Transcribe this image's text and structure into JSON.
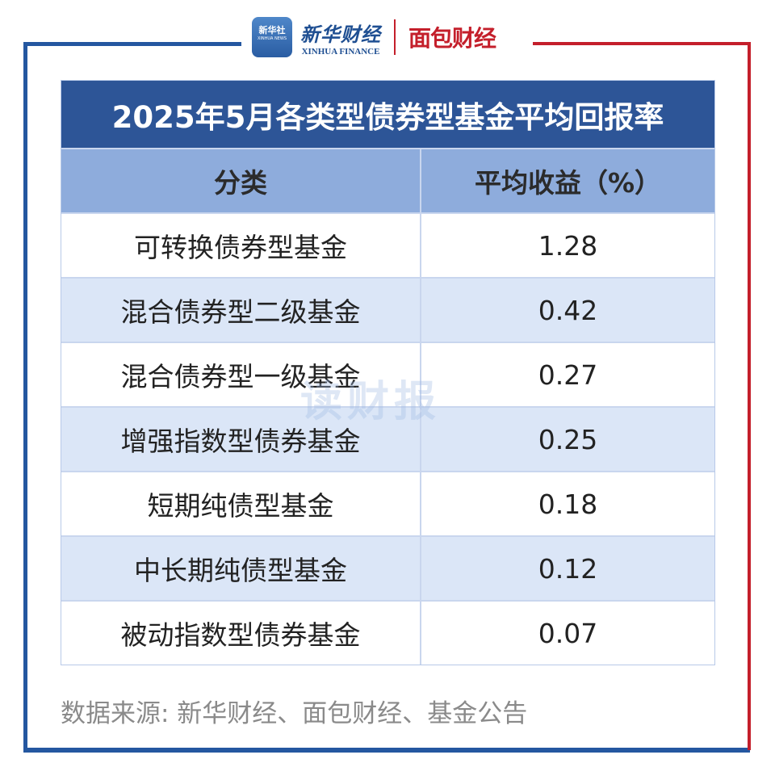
{
  "logos": {
    "xinhua_news": "新华社",
    "xinhua_news_en": "XINHUA NEWS",
    "xinhua_finance": "新华财经",
    "xinhua_finance_en": "XINHUA FINANCE",
    "mianbao": "面包财经"
  },
  "watermark": "读财报",
  "chart_data": {
    "type": "table",
    "title": "2025年5月各类型债券型基金平均回报率",
    "columns": [
      "分类",
      "平均收益（%）"
    ],
    "rows": [
      {
        "category": "可转换债券型基金",
        "value": "1.28"
      },
      {
        "category": "混合债券型二级基金",
        "value": "0.42"
      },
      {
        "category": "混合债券型一级基金",
        "value": "0.27"
      },
      {
        "category": "增强指数型债券基金",
        "value": "0.25"
      },
      {
        "category": "短期纯债型基金",
        "value": "0.18"
      },
      {
        "category": "中长期纯债型基金",
        "value": "0.12"
      },
      {
        "category": "被动指数型债券基金",
        "value": "0.07"
      }
    ],
    "colors": {
      "title_bg": "#2d5597",
      "header_bg": "#8eacdc",
      "alt_row_bg": "#dbe6f7"
    }
  },
  "source": "数据来源: 新华财经、面包财经、基金公告"
}
